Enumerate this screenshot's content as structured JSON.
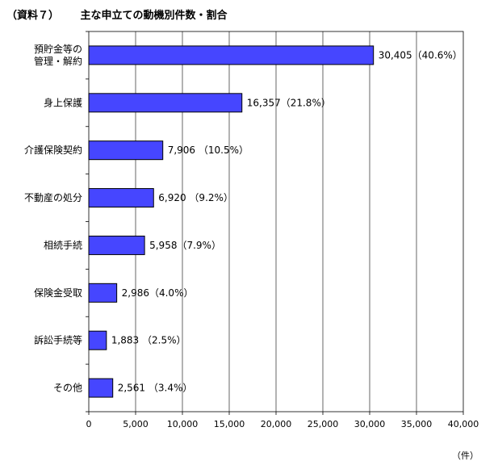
{
  "header": {
    "tag": "（資料７）",
    "title": "主な申立ての動機別件数・割合"
  },
  "unit_label": "（件）",
  "chart_data": {
    "type": "bar",
    "orientation": "horizontal",
    "categories": [
      [
        "預貯金等の",
        "管理・解約"
      ],
      [
        "身上保護"
      ],
      [
        "介護保険契約"
      ],
      [
        "不動産の処分"
      ],
      [
        "相続手続"
      ],
      [
        "保険金受取"
      ],
      [
        "訴訟手続等"
      ],
      [
        "その他"
      ]
    ],
    "values": [
      30405,
      16357,
      7906,
      6920,
      5958,
      2986,
      1883,
      2561
    ],
    "data_labels": [
      "30,405（40.6%）",
      "16,357（21.8%）",
      "7,906 （10.5%）",
      "6,920 （9.2%）",
      "5,958（7.9%）",
      "2,986（4.0%）",
      "1,883 （2.5%）",
      "2,561 （3.4%）"
    ],
    "xlim": [
      0,
      40000
    ],
    "x_ticks": [
      0,
      5000,
      10000,
      15000,
      20000,
      25000,
      30000,
      35000,
      40000
    ],
    "x_tick_labels": [
      "0",
      "5,000",
      "10,000",
      "15,000",
      "20,000",
      "25,000",
      "30,000",
      "35,000",
      "40,000"
    ],
    "grid": "vertical",
    "bar_color": "#4646ff",
    "bar_edge_color": "#000000",
    "grid_color": "#000000"
  }
}
